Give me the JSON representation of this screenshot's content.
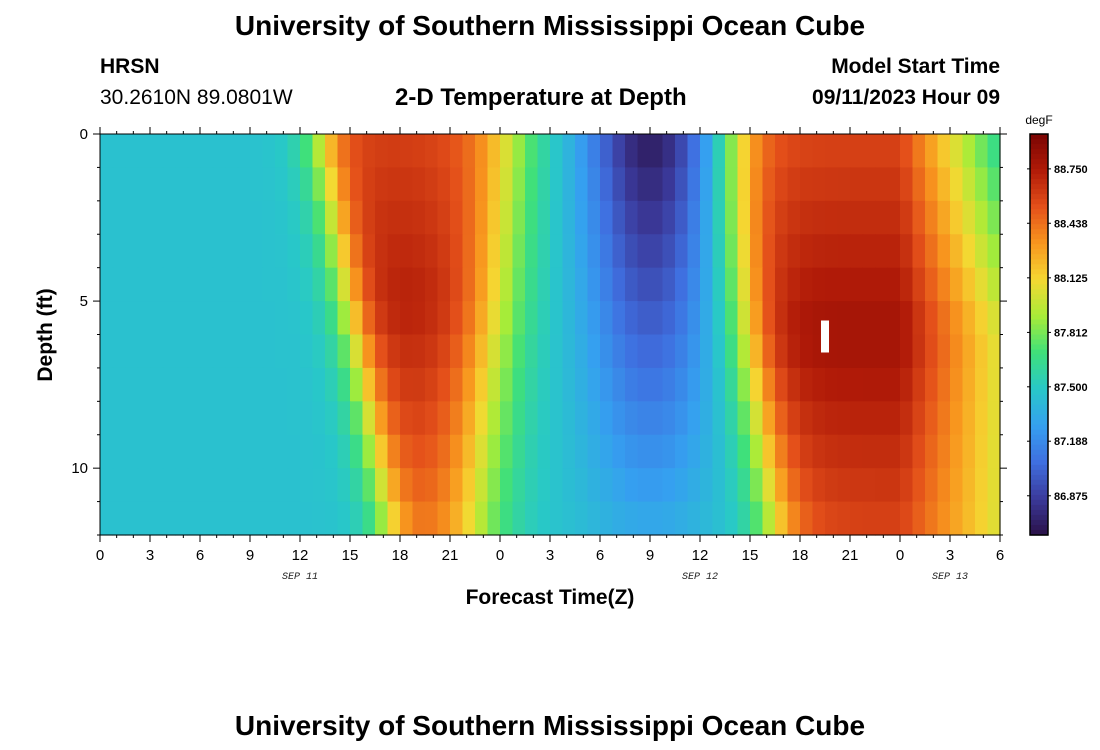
{
  "header": {
    "title": "University of Southern Mississippi Ocean Cube",
    "station": "HRSN",
    "coordinates": "30.2610N  89.0801W",
    "subtitle": "2-D Temperature at Depth",
    "model_start_label": "Model Start Time",
    "model_start_value": "09/11/2023 Hour 09"
  },
  "footer": {
    "title": "University of Southern Mississippi Ocean Cube"
  },
  "chart_data": {
    "type": "heatmap",
    "title": "2-D Temperature at Depth",
    "xlabel": "Forecast Time(Z)",
    "ylabel": "Depth (ft)",
    "x_range_hours": [
      0,
      54
    ],
    "x_start": "SEP 11 00Z",
    "x_tick_labels": [
      "0",
      "3",
      "6",
      "9",
      "12",
      "15",
      "18",
      "21",
      "0",
      "3",
      "6",
      "9",
      "12",
      "15",
      "18",
      "21",
      "0",
      "3",
      "6"
    ],
    "date_labels": [
      {
        "label": "SEP 11",
        "hour": 12
      },
      {
        "label": "SEP 12",
        "hour": 36
      },
      {
        "label": "SEP 13",
        "hour": 51
      }
    ],
    "y_range_ft": [
      0,
      12
    ],
    "y_tick_labels": [
      "0",
      "5",
      "10"
    ],
    "y_tick_values": [
      0,
      5,
      10
    ],
    "colorbar": {
      "unit": "degF",
      "min": 86.65,
      "max": 88.95,
      "labels": [
        "88.750",
        "88.438",
        "88.125",
        "87.812",
        "87.500",
        "87.188",
        "86.875"
      ],
      "colors": [
        "#2a1147",
        "#3b3a9c",
        "#3f6fe0",
        "#35a0f0",
        "#28c8c8",
        "#3fe07a",
        "#a8ec38",
        "#f5d832",
        "#f8961e",
        "#e4501a",
        "#b01a08",
        "#7a0403"
      ]
    },
    "description_of_field": "temperature in degF by forecast hour (0-54 from SEP 11 00Z) and depth (0-12 ft): cool (~87.45) hours 0-12, warm peak (~88.9) near hours 18-20 at depth 5-7 ft, minimum (~86.7) near hour 33 at surface, second warm peak (~88.85) near hours 42-45 at depth ~6 ft",
    "marker": {
      "hour": 43.5,
      "depth_ft": 6,
      "label": ""
    }
  }
}
